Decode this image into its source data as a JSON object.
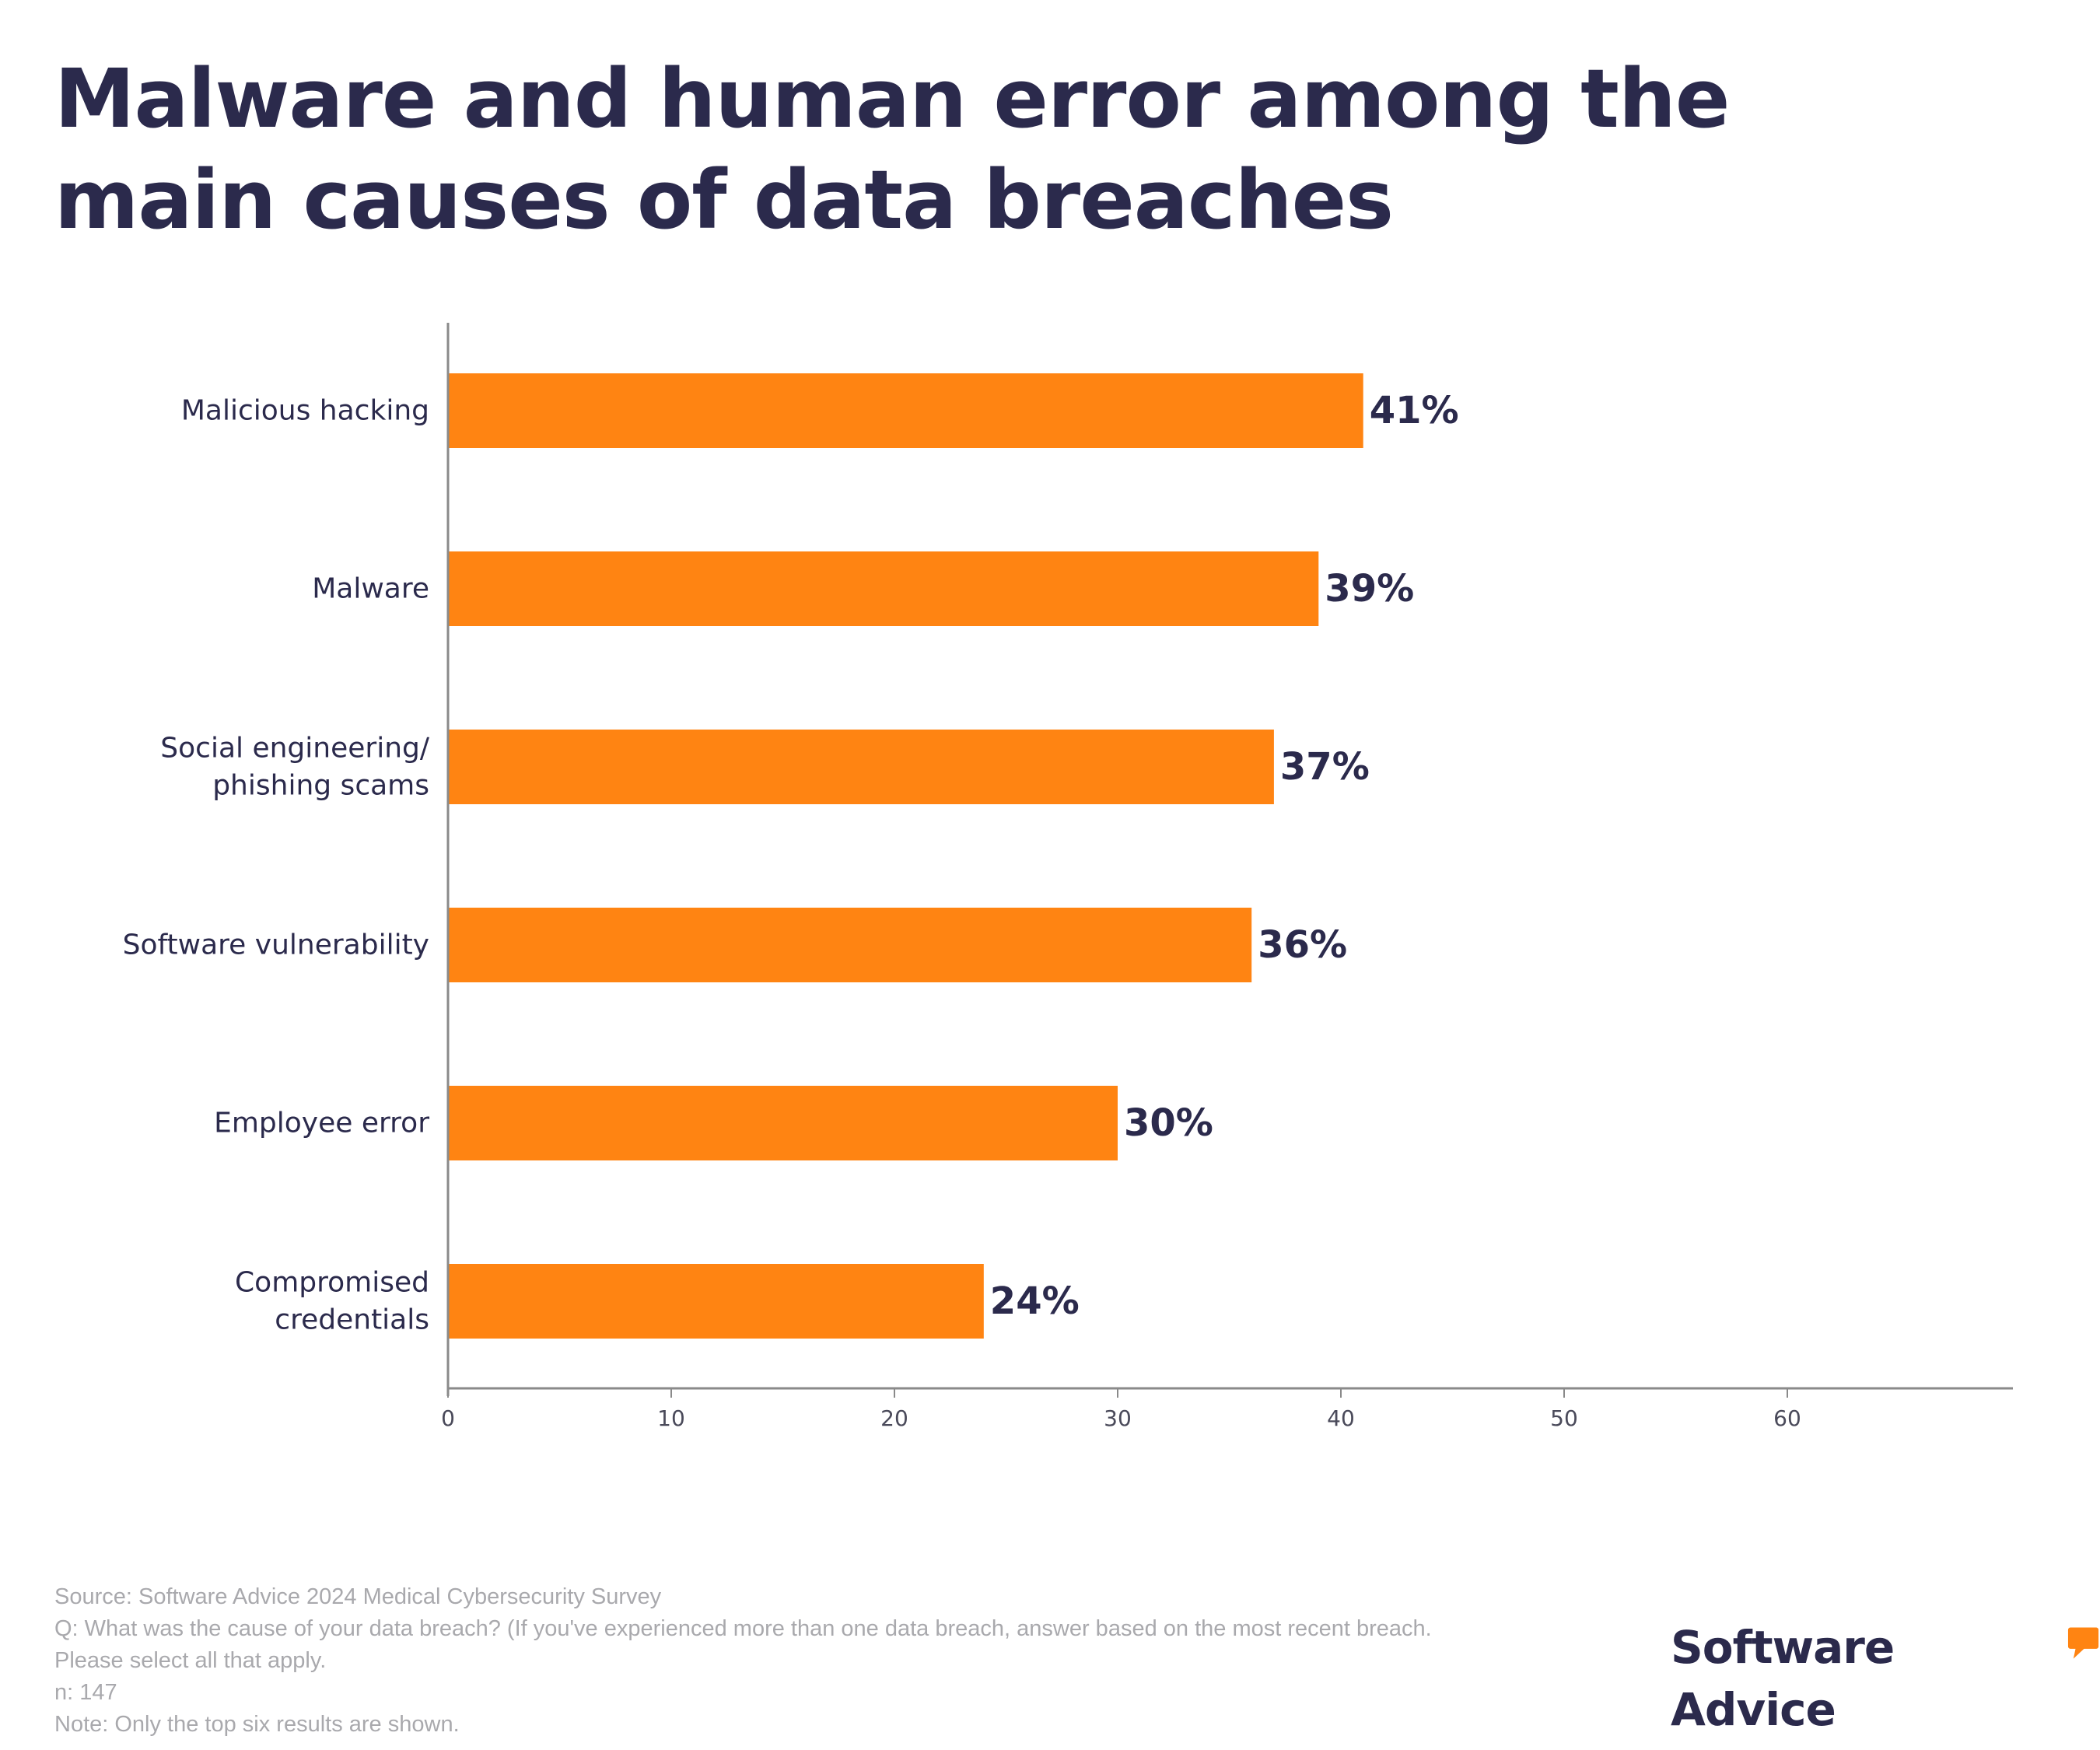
{
  "title": "Malware and human error among the main causes of data breaches",
  "chart_data": {
    "type": "bar",
    "orientation": "horizontal",
    "categories": [
      "Malicious hacking",
      "Malware",
      "Social engineering/ phishing scams",
      "Software vulnerability",
      "Employee error",
      "Compromised credentials"
    ],
    "values": [
      41,
      39,
      37,
      36,
      30,
      24
    ],
    "value_labels": [
      "41%",
      "39%",
      "37%",
      "36%",
      "30%",
      "24%"
    ],
    "xticks": [
      "0",
      "10",
      "20",
      "30",
      "40",
      "50",
      "60"
    ],
    "xlim": [
      0,
      70
    ],
    "xlabel": "",
    "ylabel": "",
    "grid": false,
    "bar_color": "#ff8412",
    "text_color": "#2b2a4c"
  },
  "footer": {
    "source": "Source: Software Advice 2024 Medical Cybersecurity Survey",
    "question": "Q: What was the cause of your data breach? (If you've experienced more than one data breach, answer based on the most recent breach. Please select all that apply.",
    "n": "n: 147",
    "note": "Note: Only the top six results are shown."
  },
  "brand": {
    "name": "Software Advice",
    "registered": "®",
    "accent_color": "#ff8412"
  }
}
